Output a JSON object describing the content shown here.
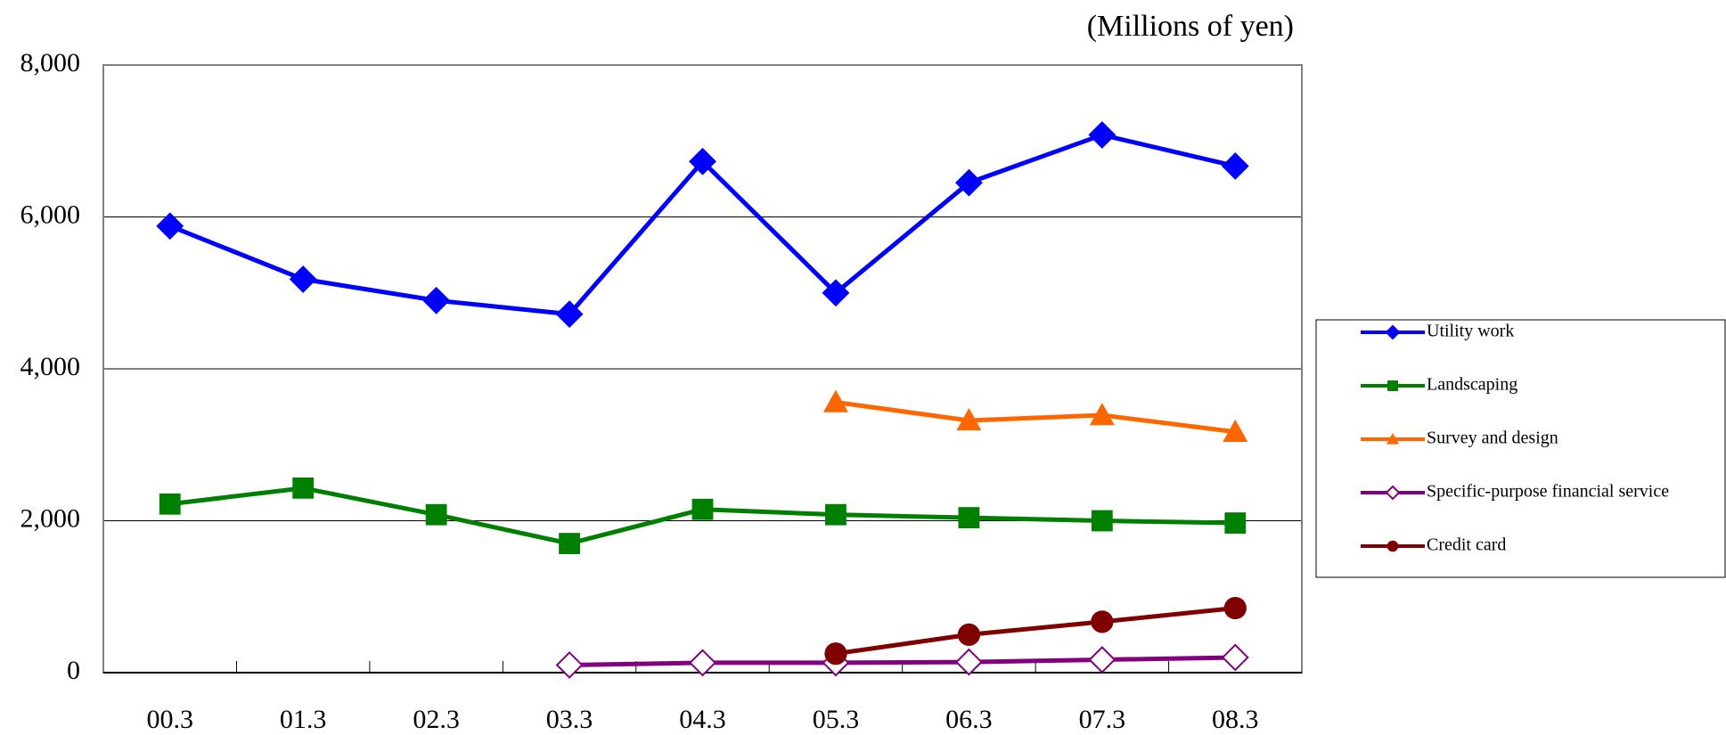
{
  "chart_data": {
    "type": "line",
    "annotation": "(Millions of yen)",
    "categories": [
      "00.3",
      "01.3",
      "02.3",
      "03.3",
      "04.3",
      "05.3",
      "06.3",
      "07.3",
      "08.3"
    ],
    "series": [
      {
        "name": "Utility work",
        "color": "#0000ff",
        "marker": "diamond",
        "values": [
          5880,
          5180,
          4900,
          4720,
          6730,
          5000,
          6450,
          7080,
          6670
        ]
      },
      {
        "name": "Landscaping",
        "color": "#008000",
        "marker": "square",
        "values": [
          2220,
          2430,
          2080,
          1700,
          2150,
          2080,
          2040,
          2000,
          1970
        ]
      },
      {
        "name": "Survey and design",
        "color": "#ff6600",
        "marker": "triangle",
        "values": [
          null,
          null,
          null,
          null,
          null,
          3560,
          3320,
          3390,
          3170
        ]
      },
      {
        "name": "Specific-purpose financial service",
        "color": "#800080",
        "marker": "open-diamond",
        "values": [
          null,
          null,
          null,
          100,
          130,
          130,
          140,
          170,
          200
        ]
      },
      {
        "name": "Credit card",
        "color": "#800000",
        "marker": "circle",
        "values": [
          null,
          null,
          null,
          null,
          null,
          250,
          500,
          670,
          850
        ]
      }
    ],
    "ylim": [
      0,
      8000
    ],
    "yticks": [
      0,
      {
        "value": 2000,
        "label": "2,000"
      },
      {
        "value": 4000,
        "label": "4,000"
      },
      {
        "value": 6000,
        "label": "6,000"
      },
      {
        "value": 8000,
        "label": "8,000"
      }
    ],
    "grid": true,
    "legend": "right"
  }
}
